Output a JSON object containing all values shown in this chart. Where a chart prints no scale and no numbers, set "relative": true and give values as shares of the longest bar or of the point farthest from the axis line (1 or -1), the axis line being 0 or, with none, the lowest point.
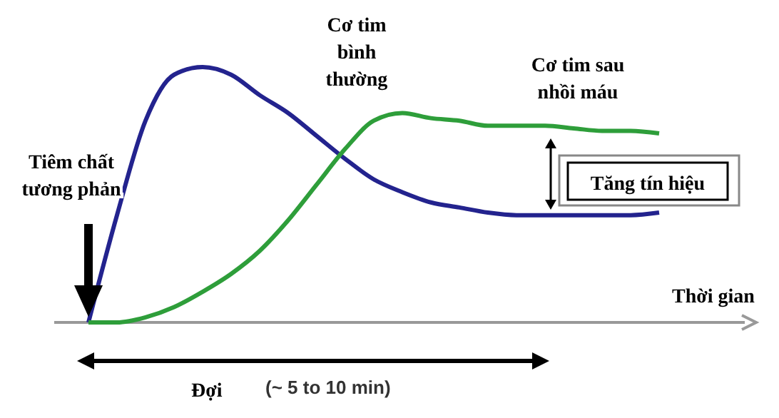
{
  "chart_data": {
    "type": "line",
    "relative": true,
    "xlabel": "Thời gian",
    "categories": [
      null,
      null,
      null,
      null,
      null,
      null,
      null,
      null,
      null,
      null,
      null,
      null,
      null,
      null,
      null,
      null,
      null,
      null,
      null,
      null,
      null
    ],
    "series": [
      {
        "color": "#23238e",
        "values": [
          0,
          0.42,
          0.79,
          0.97,
          1.0,
          0.97,
          0.89,
          0.82,
          0.73,
          0.64,
          0.56,
          0.51,
          0.47,
          0.45,
          0.43,
          0.42,
          0.42,
          0.42,
          0.42,
          0.42,
          0.43
        ]
      },
      {
        "color": "#2e9e3a",
        "values": [
          0,
          0,
          0.02,
          0.06,
          0.12,
          0.19,
          0.28,
          0.4,
          0.54,
          0.68,
          0.79,
          0.82,
          0.8,
          0.79,
          0.77,
          0.77,
          0.77,
          0.76,
          0.75,
          0.75,
          0.74
        ]
      }
    ],
    "annotations": [
      "Tiêm chất tương phản",
      "Cơ tim bình thường",
      "Cơ tim sau nhồi máu",
      "Tăng tín hiệu",
      "Đợi",
      "(~ 5 to 10 min)"
    ],
    "marker": "none",
    "line_style": "solid",
    "grid": false,
    "legend": false
  }
}
